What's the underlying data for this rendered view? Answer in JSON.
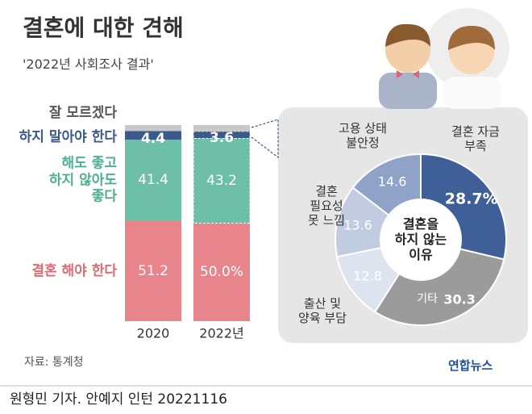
{
  "header": {
    "title": "결혼에 대한 견해",
    "subtitle": "'2022년 사회조사 결과'"
  },
  "chart_data": [
    {
      "type": "stacked-bar",
      "categories": [
        "2020",
        "2022년"
      ],
      "ylim": [
        0,
        100
      ],
      "series": [
        {
          "name": "결혼 해야 한다",
          "color": "#e8848b",
          "values": [
            51.2,
            50.0
          ],
          "value_labels": [
            "51.2",
            "50.0%"
          ]
        },
        {
          "name": "해도 좋고\n하지 않아도\n좋다",
          "color": "#6dbfa6",
          "values": [
            41.4,
            43.2
          ]
        },
        {
          "name": "하지 말아야 한다",
          "color": "#3a5a8c",
          "values": [
            4.4,
            3.6
          ]
        },
        {
          "name": "잘 모르겠다",
          "color": "#c8c8c8",
          "values": [
            3.0,
            3.2
          ]
        }
      ]
    },
    {
      "type": "donut",
      "title": "결혼을\n하지 않는\n이유",
      "categories": [
        "결혼 자금\n부족",
        "기타",
        "출산 및\n양육 부담",
        "결혼\n필요성\n못 느낌",
        "고용 상태\n불안정"
      ],
      "values": [
        28.7,
        30.3,
        12.8,
        13.6,
        14.6
      ],
      "value_labels": [
        "28.7%",
        "30.3",
        "12.8",
        "13.6",
        "14.6"
      ],
      "colors": [
        "#3f5f99",
        "#9b9b9b",
        "#dde3ef",
        "#c2cce0",
        "#8fa3c9"
      ]
    }
  ],
  "footer": {
    "source": "자료: 통계청",
    "logo": "연합뉴스",
    "credit": "원형민 기자. 안예지 인턴  20221116"
  }
}
